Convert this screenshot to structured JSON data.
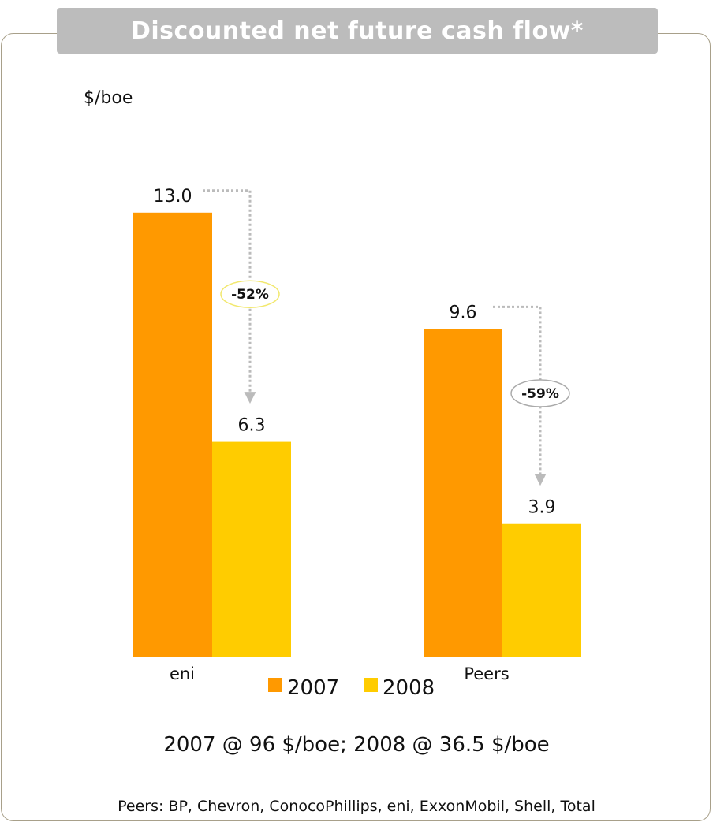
{
  "title": "Discounted net future cash flow*",
  "unit_label": "$/boe",
  "condition_note": "2007 @ 96 $/boe; 2008 @ 36.5 $/boe",
  "footnote": "Peers: BP, Chevron, ConocoPhillips, eni, ExxonMobil, Shell, Total",
  "colors": {
    "s2007": "#FF9900",
    "s2008": "#FFCC00",
    "arrow": "#BBBBBB"
  },
  "chart_data": {
    "type": "bar",
    "categories": [
      "eni",
      "Peers"
    ],
    "series": [
      {
        "name": "2007",
        "values": [
          13.0,
          9.6
        ],
        "labels": [
          "13.0",
          "9.6"
        ]
      },
      {
        "name": "2008",
        "values": [
          6.3,
          3.9
        ],
        "labels": [
          "6.3",
          "3.9"
        ]
      }
    ],
    "changes": [
      "-52%",
      "-59%"
    ],
    "change_badge_colors": [
      "#F2E86E",
      "#AAAAAA"
    ],
    "ylabel": "$/boe",
    "ylim": [
      0,
      16.6
    ],
    "legend": "bottom-center",
    "grid": false
  }
}
